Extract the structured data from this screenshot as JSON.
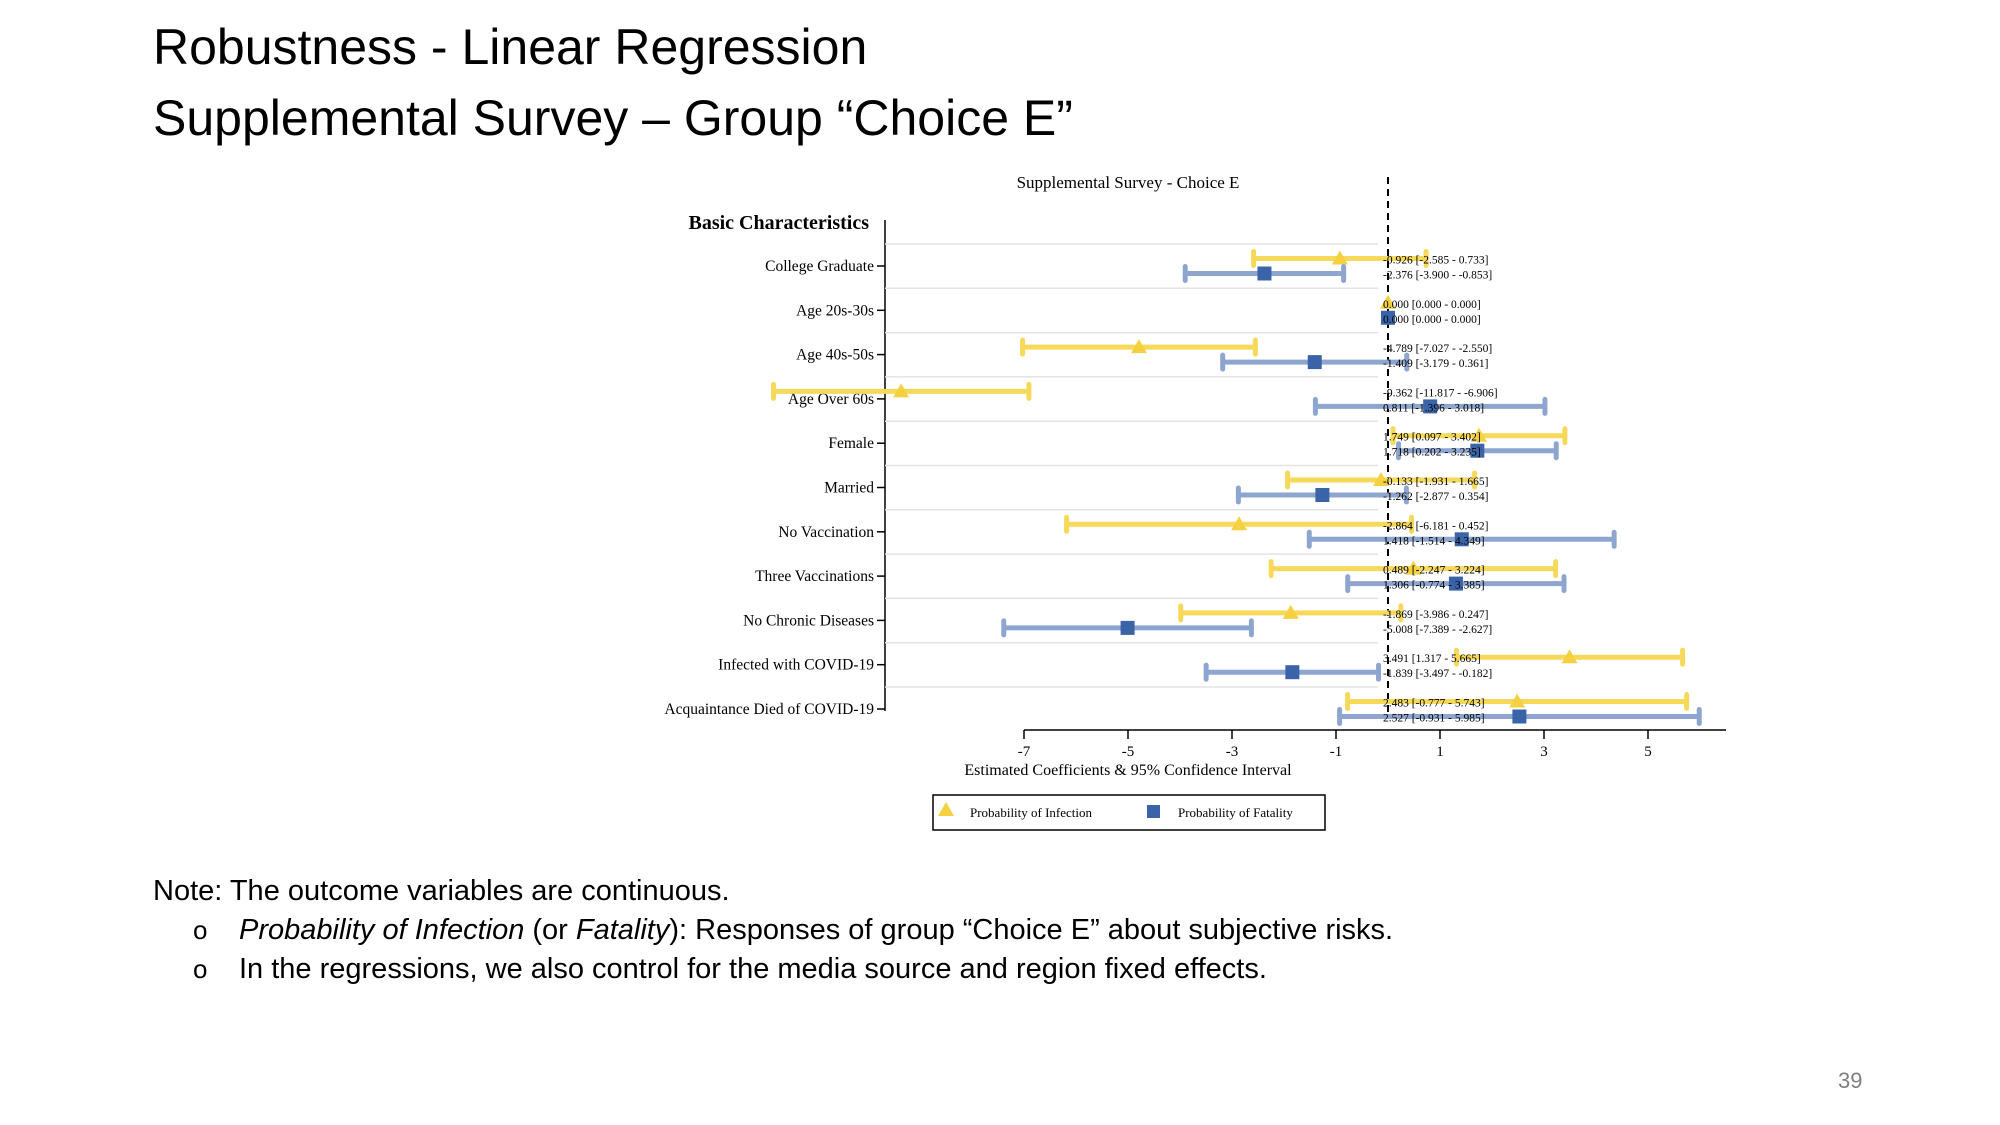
{
  "slide": {
    "title_line1": "Robustness - Linear Regression",
    "title_line2": "Supplemental Survey – Group “Choice E”",
    "note": {
      "heading": "Note: The outcome variables are continuous.",
      "bullet_symbol": "o",
      "bullet1_italic_a": "Probability of Infection",
      "bullet1_mid": " (or ",
      "bullet1_italic_b": "Fatality",
      "bullet1_rest": "): Responses of group “Choice E” about subjective risks.",
      "bullet2": "In the regressions, we also control for the media source and region fixed effects."
    },
    "page_number": "39"
  },
  "chart_data": {
    "type": "coefficient-plot",
    "title": "Supplemental Survey - Choice E",
    "group_heading": "Basic Characteristics",
    "xlabel": "Estimated Coefficients & 95% Confidence Interval",
    "xlim": [
      -7,
      6.5
    ],
    "xticks": [
      -7,
      -5,
      -3,
      -1,
      1,
      3,
      5
    ],
    "reference_line": 0,
    "legend_position": "bottom-center",
    "categories": [
      "College Graduate",
      "Age 20s-30s",
      "Age 40s-50s",
      "Age Over 60s",
      "Female",
      "Married",
      "No Vaccination",
      "Three Vaccinations",
      "No Chronic Diseases",
      "Infected with COVID-19",
      "Acquaintance Died of COVID-19"
    ],
    "series": [
      {
        "name": "Probability of Infection",
        "marker": "triangle",
        "color": "#f5d142",
        "ci_color": "#f7d95a",
        "estimates": [
          -0.926,
          0.0,
          -4.789,
          -9.362,
          1.749,
          -0.133,
          -2.864,
          0.489,
          -1.869,
          3.491,
          2.483
        ],
        "lower": [
          -2.585,
          0.0,
          -7.027,
          -11.817,
          0.097,
          -1.931,
          -6.181,
          -2.247,
          -3.986,
          1.317,
          -0.777
        ],
        "upper": [
          0.733,
          0.0,
          -2.55,
          -6.906,
          3.402,
          1.665,
          0.452,
          3.224,
          0.247,
          5.665,
          5.743
        ],
        "labels": [
          "-0.926  [-2.585 - 0.733]",
          "0.000  [0.000 - 0.000]",
          "-4.789  [-7.027 - -2.550]",
          "-9.362  [-11.817 - -6.906]",
          "1.749  [0.097 - 3.402]",
          "-0.133  [-1.931 - 1.665]",
          "-2.864  [-6.181 - 0.452]",
          "0.489  [-2.247 - 3.224]",
          "-1.869  [-3.986 - 0.247]",
          "3.491  [1.317 - 5.665]",
          "2.483  [-0.777 - 5.743]"
        ]
      },
      {
        "name": "Probability of Fatality",
        "marker": "square",
        "color": "#3a63a8",
        "ci_color": "#8ea6cf",
        "estimates": [
          -2.376,
          0.0,
          -1.409,
          0.811,
          1.718,
          -1.262,
          1.418,
          1.306,
          -5.008,
          -1.839,
          2.527
        ],
        "lower": [
          -3.9,
          0.0,
          -3.179,
          -1.396,
          0.202,
          -2.877,
          -1.514,
          -0.774,
          -7.389,
          -3.497,
          -0.931
        ],
        "upper": [
          -0.853,
          0.0,
          0.361,
          3.018,
          3.235,
          0.354,
          4.349,
          3.385,
          -2.627,
          -0.182,
          5.985
        ],
        "labels": [
          "-2.376  [-3.900 - -0.853]",
          "0.000  [0.000 - 0.000]",
          "-1.409  [-3.179 - 0.361]",
          "0.811  [-1.396 - 3.018]",
          "1.718  [0.202 - 3.235]",
          "-1.262  [-2.877 - 0.354]",
          "1.418  [-1.514 - 4.349]",
          "1.306  [-0.774 - 3.385]",
          "-5.008  [-7.389 - -2.627]",
          "-1.839  [-3.497 - -0.182]",
          "2.527  [-0.931 - 5.985]"
        ]
      }
    ]
  }
}
